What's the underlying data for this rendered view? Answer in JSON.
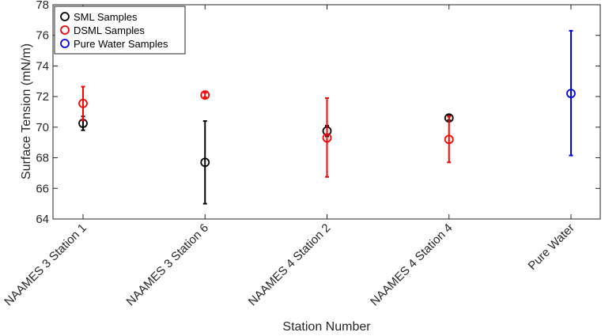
{
  "chart_data": {
    "type": "scatter",
    "title": "",
    "xlabel": "Station Number",
    "ylabel": "Surface Tension (mN/m)",
    "categories": [
      "NAAMES 3 Station 1",
      "NAAMES 3 Station 6",
      "NAAMES 4 Station 2",
      "NAAMES 4 Station 4",
      "Pure Water"
    ],
    "ylim": [
      64,
      78
    ],
    "yticks": [
      64,
      66,
      68,
      70,
      72,
      74,
      76,
      78
    ],
    "grid": false,
    "legend_position": "top-left",
    "series": [
      {
        "name": "SML Samples",
        "color": "#000000",
        "points": [
          {
            "category": "NAAMES 3 Station 1",
            "y": 70.25,
            "low": 69.8,
            "high": 70.7
          },
          {
            "category": "NAAMES 3 Station 6",
            "y": 67.7,
            "low": 65.0,
            "high": 70.4
          },
          {
            "category": "NAAMES 4 Station 2",
            "y": 69.75,
            "low": 69.4,
            "high": 70.1
          },
          {
            "category": "NAAMES 4 Station 4",
            "y": 70.6,
            "low": 70.45,
            "high": 70.75
          }
        ]
      },
      {
        "name": "DSML Samples",
        "color": "#ff0000",
        "points": [
          {
            "category": "NAAMES 3 Station 1",
            "y": 71.55,
            "low": 70.45,
            "high": 72.65
          },
          {
            "category": "NAAMES 3 Station 6",
            "y": 72.1,
            "low": 71.95,
            "high": 72.25
          },
          {
            "category": "NAAMES 4 Station 2",
            "y": 69.3,
            "low": 66.75,
            "high": 71.9
          },
          {
            "category": "NAAMES 4 Station 4",
            "y": 69.2,
            "low": 67.7,
            "high": 70.7
          }
        ]
      },
      {
        "name": "Pure Water Samples",
        "color": "#0000ff",
        "points": [
          {
            "category": "Pure Water",
            "y": 72.2,
            "low": 68.15,
            "high": 76.3
          }
        ]
      }
    ]
  }
}
